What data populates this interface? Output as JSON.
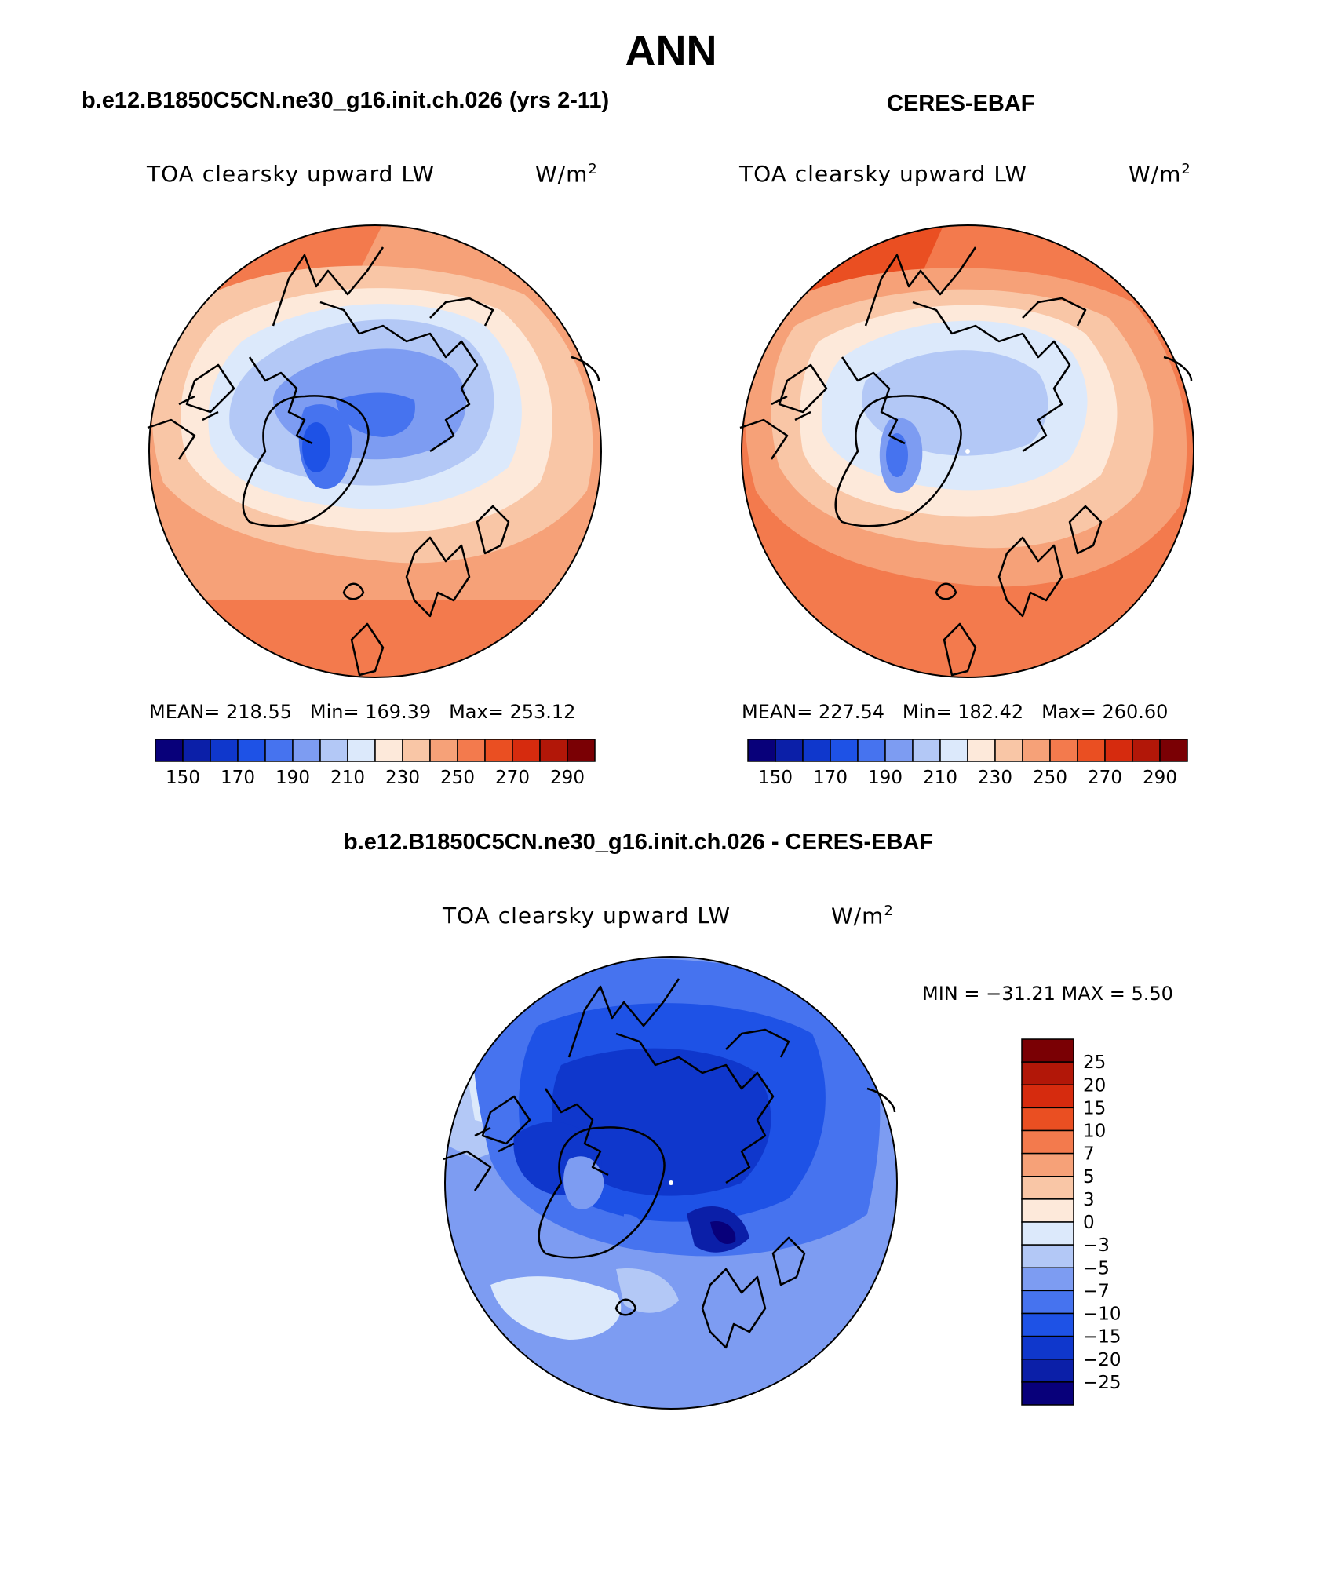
{
  "title": "ANN",
  "panels": [
    {
      "id": "model",
      "case_title": "b.e12.B1850C5CN.ne30_g16.init.ch.026 (yrs 2-11)",
      "variable": "TOA clearsky upward LW",
      "units_base": "W/m",
      "units_exp": "2",
      "mean_label": "MEAN=",
      "mean": "218.55",
      "min_label": "Min=",
      "min": "169.39",
      "max_label": "Max=",
      "max": "253.12"
    },
    {
      "id": "obs",
      "case_title": "CERES-EBAF",
      "variable": "TOA clearsky upward LW",
      "units_base": "W/m",
      "units_exp": "2",
      "mean_label": "MEAN=",
      "mean": "227.54",
      "min_label": "Min=",
      "min": "182.42",
      "max_label": "Max=",
      "max": "260.60"
    }
  ],
  "abs_colorbar": {
    "colors": [
      "#08007a",
      "#0b1fa8",
      "#0f37cc",
      "#1e52e6",
      "#4673ef",
      "#7d9cf2",
      "#b3c8f6",
      "#dce9fb",
      "#fde9da",
      "#f9c6a6",
      "#f6a178",
      "#f37a4d",
      "#ea4f22",
      "#d62b0e",
      "#b21708",
      "#7a0004"
    ],
    "ticks": [
      "150",
      "170",
      "190",
      "210",
      "230",
      "250",
      "270",
      "290"
    ]
  },
  "diff": {
    "title": "b.e12.B1850C5CN.ne30_g16.init.ch.026 - CERES-EBAF",
    "variable": "TOA clearsky upward LW",
    "units_base": "W/m",
    "units_exp": "2",
    "min_max_label": "MIN = −31.21 MAX =    5.50",
    "colorbar": {
      "colors": [
        "#7a0004",
        "#b21708",
        "#d62b0e",
        "#ea4f22",
        "#f37a4d",
        "#f6a178",
        "#f9c6a6",
        "#fde9da",
        "#dce9fb",
        "#b3c8f6",
        "#7d9cf2",
        "#4673ef",
        "#1e52e6",
        "#0f37cc",
        "#0b1fa8",
        "#08007a"
      ],
      "ticks": [
        "25",
        "20",
        "15",
        "10",
        "7",
        "5",
        "3",
        "0",
        "−3",
        "−5",
        "−7",
        "−10",
        "−15",
        "−20",
        "−25"
      ]
    }
  }
}
